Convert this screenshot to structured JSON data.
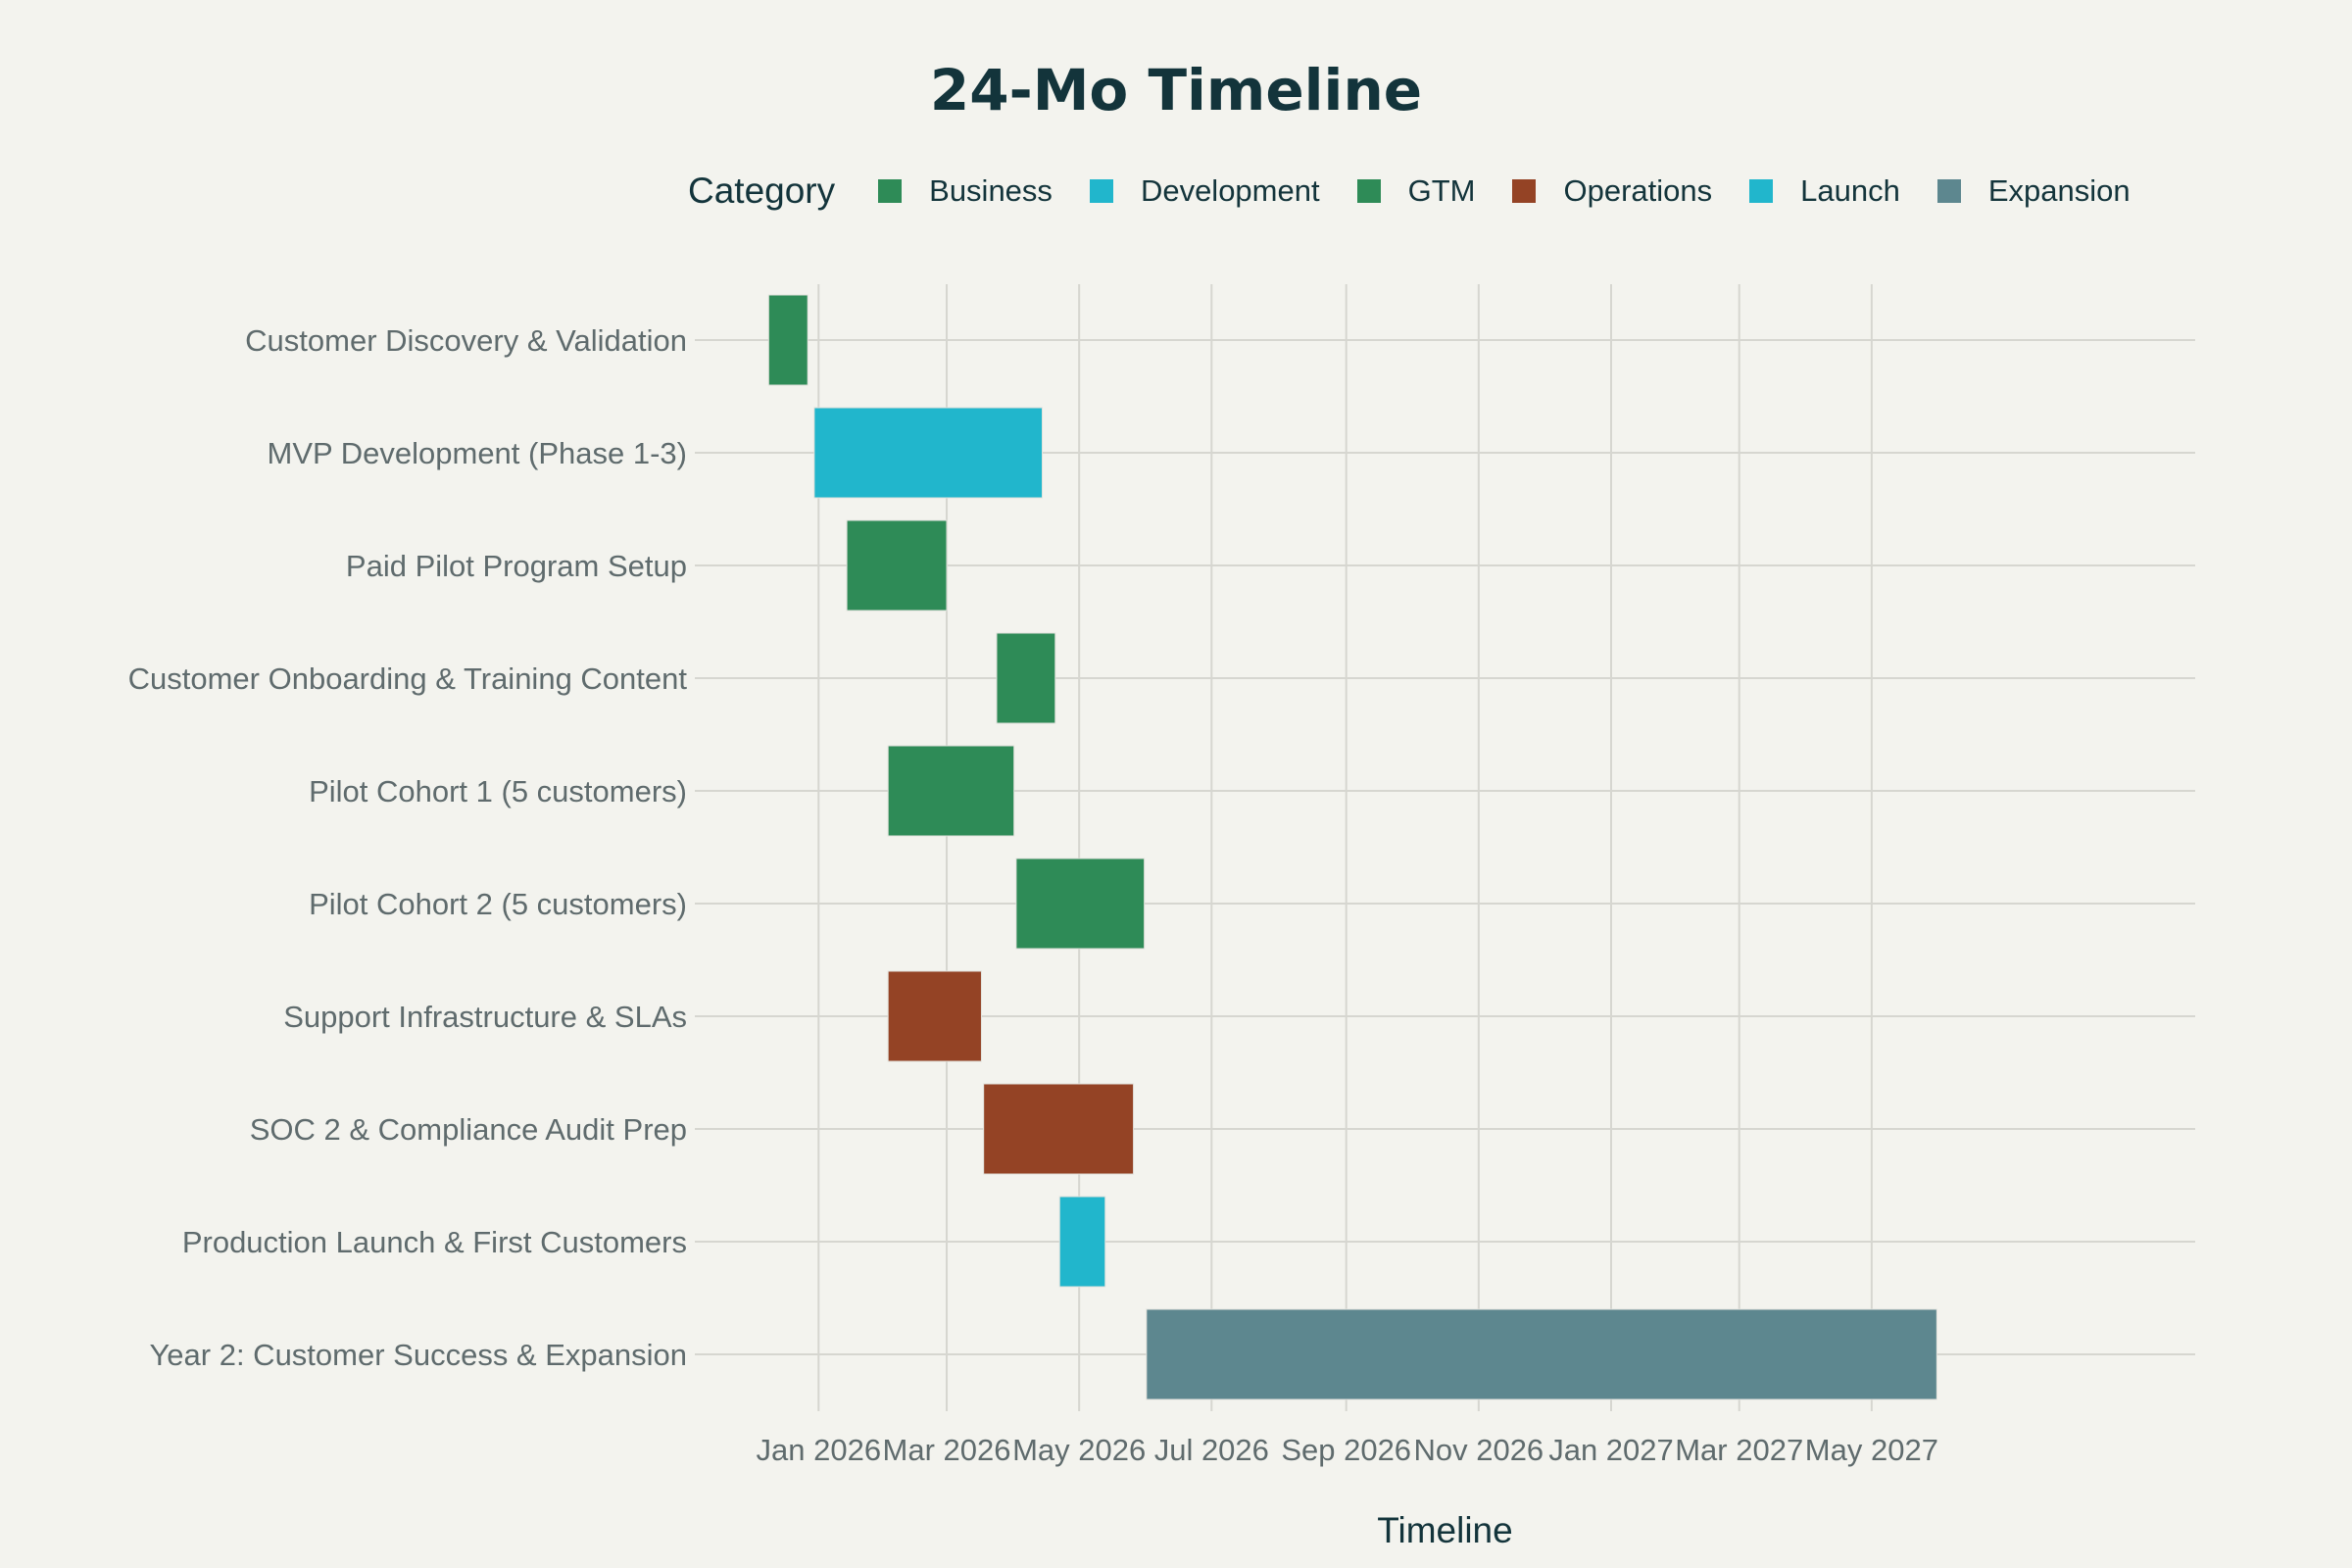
{
  "chart_data": {
    "type": "gantt",
    "title": "24-Mo Timeline",
    "xlabel": "Timeline",
    "ylabel": "",
    "legend_title": "Category",
    "legend_position": "top",
    "grid": true,
    "xlim": [
      "2025-11-05",
      "2027-09-27"
    ],
    "x_ticks": [
      {
        "date": "2026-01-01",
        "label": "Jan 2026"
      },
      {
        "date": "2026-03-01",
        "label": "Mar 2026"
      },
      {
        "date": "2026-05-01",
        "label": "May 2026"
      },
      {
        "date": "2026-07-01",
        "label": "Jul 2026"
      },
      {
        "date": "2026-09-01",
        "label": "Sep 2026"
      },
      {
        "date": "2026-11-01",
        "label": "Nov 2026"
      },
      {
        "date": "2027-01-01",
        "label": "Jan 2027"
      },
      {
        "date": "2027-03-01",
        "label": "Mar 2027"
      },
      {
        "date": "2027-05-01",
        "label": "May 2027"
      }
    ],
    "categories": [
      {
        "name": "Business",
        "color": "#2e8b57"
      },
      {
        "name": "Development",
        "color": "#21b6cc"
      },
      {
        "name": "GTM",
        "color": "#2e8b57"
      },
      {
        "name": "Operations",
        "color": "#944325"
      },
      {
        "name": "Launch",
        "color": "#21b6cc"
      },
      {
        "name": "Expansion",
        "color": "#5d878f"
      }
    ],
    "tasks": [
      {
        "task": "Customer Discovery & Validation",
        "category": "Business",
        "start": "2025-12-09",
        "end": "2025-12-27"
      },
      {
        "task": "MVP Development (Phase 1-3)",
        "category": "Development",
        "start": "2025-12-30",
        "end": "2026-04-14"
      },
      {
        "task": "Paid Pilot Program Setup",
        "category": "Business",
        "start": "2026-01-14",
        "end": "2026-03-01"
      },
      {
        "task": "Customer Onboarding & Training Content",
        "category": "GTM",
        "start": "2026-03-24",
        "end": "2026-04-20"
      },
      {
        "task": "Pilot Cohort 1 (5 customers)",
        "category": "GTM",
        "start": "2026-02-02",
        "end": "2026-04-01"
      },
      {
        "task": "Pilot Cohort 2 (5 customers)",
        "category": "GTM",
        "start": "2026-04-02",
        "end": "2026-05-31"
      },
      {
        "task": "Support Infrastructure & SLAs",
        "category": "Operations",
        "start": "2026-02-02",
        "end": "2026-03-17"
      },
      {
        "task": "SOC 2 & Compliance Audit Prep",
        "category": "Operations",
        "start": "2026-03-18",
        "end": "2026-05-26"
      },
      {
        "task": "Production Launch & First Customers",
        "category": "Launch",
        "start": "2026-04-22",
        "end": "2026-05-13"
      },
      {
        "task": "Year 2: Customer Success & Expansion",
        "category": "Expansion",
        "start": "2026-06-01",
        "end": "2027-05-31"
      }
    ]
  }
}
